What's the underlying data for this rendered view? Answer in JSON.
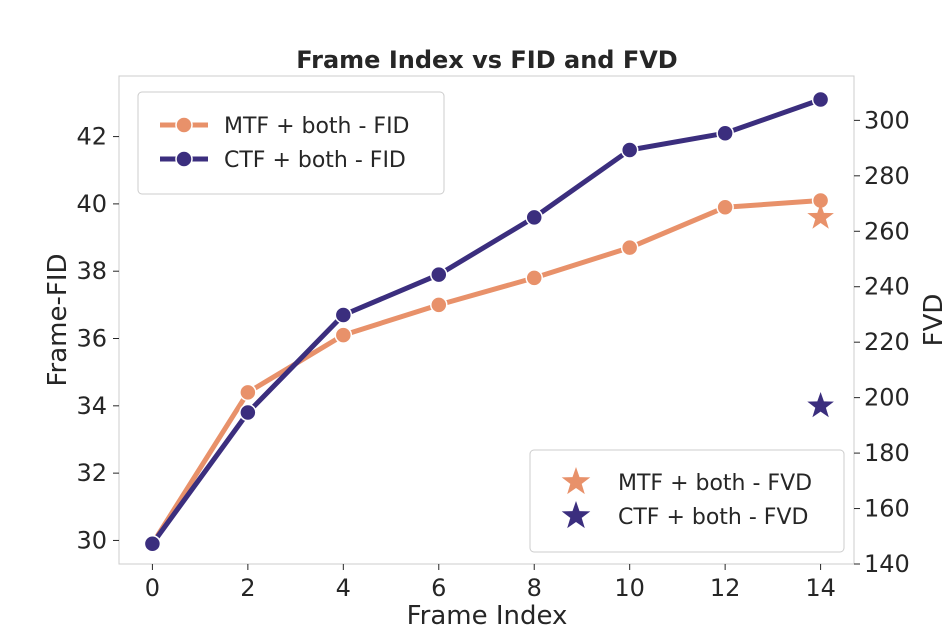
{
  "chart_data": {
    "type": "line",
    "title": "Frame Index vs FID and FVD",
    "xlabel": "Frame Index",
    "ylabel": "Frame-FID",
    "y2label": "FVD",
    "x": [
      0,
      2,
      4,
      6,
      8,
      10,
      12,
      14
    ],
    "xticks": [
      "0",
      "2",
      "4",
      "6",
      "8",
      "10",
      "12",
      "14"
    ],
    "xlim": [
      -0.7,
      14.7
    ],
    "ylim": [
      29.3,
      43.8
    ],
    "yticks": [
      "30",
      "32",
      "34",
      "36",
      "38",
      "40",
      "42"
    ],
    "y2lim": [
      140,
      316
    ],
    "y2ticks": [
      "140",
      "160",
      "180",
      "200",
      "220",
      "240",
      "260",
      "280",
      "300"
    ],
    "series": [
      {
        "name": "MTF + both - FID",
        "axis": "left",
        "style": "line-marker",
        "color": "#E8916A",
        "values": [
          29.9,
          34.4,
          36.1,
          37.0,
          37.8,
          38.7,
          39.9,
          40.1
        ]
      },
      {
        "name": "CTF + both - FID",
        "axis": "left",
        "style": "line-marker",
        "color": "#3B2E7E",
        "values": [
          29.9,
          33.8,
          36.7,
          37.9,
          39.6,
          41.6,
          42.1,
          43.1
        ]
      },
      {
        "name": "MTF + both - FVD",
        "axis": "right",
        "style": "star",
        "color": "#E8916A",
        "points": [
          {
            "x": 14,
            "y": 265
          }
        ]
      },
      {
        "name": "CTF + both - FVD",
        "axis": "right",
        "style": "star",
        "color": "#3B2E7E",
        "points": [
          {
            "x": 14,
            "y": 197
          }
        ]
      }
    ],
    "legend_upper": "top-left",
    "legend_lower": "bottom-right",
    "grid": false
  }
}
